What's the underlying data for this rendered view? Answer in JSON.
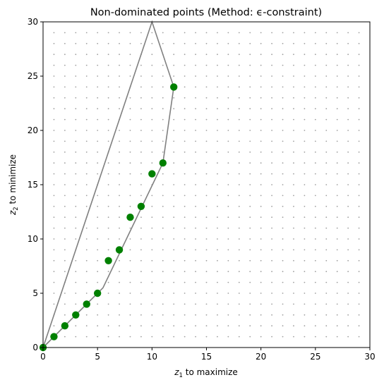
{
  "chart_data": {
    "type": "scatter",
    "title": "Non-dominated points (Method: ϵ-constraint)",
    "xlabel": {
      "var": "z",
      "sub": "1",
      "rest": " to maximize"
    },
    "ylabel": {
      "var": "z",
      "sub": "2",
      "rest": " to minimize"
    },
    "xlim": [
      0,
      30
    ],
    "ylim": [
      0,
      30
    ],
    "xticks": [
      0,
      5,
      10,
      15,
      20,
      25,
      30
    ],
    "yticks": [
      0,
      5,
      10,
      15,
      20,
      25,
      30
    ],
    "grid_points": true,
    "grid_point_range": [
      1,
      29
    ],
    "series": [
      {
        "kind": "points",
        "color": "#008000",
        "points": [
          [
            0,
            0
          ],
          [
            1,
            1
          ],
          [
            2,
            2
          ],
          [
            3,
            3
          ],
          [
            4,
            4
          ],
          [
            5,
            5
          ],
          [
            6,
            8
          ],
          [
            7,
            9
          ],
          [
            8,
            12
          ],
          [
            9,
            13
          ],
          [
            10,
            16
          ],
          [
            11,
            17
          ],
          [
            12,
            24
          ]
        ]
      },
      {
        "kind": "polygon",
        "color": "#808080",
        "vertices": [
          [
            0,
            0
          ],
          [
            10,
            30
          ],
          [
            12,
            24
          ],
          [
            11,
            17
          ],
          [
            5.5,
            5.5
          ],
          [
            0,
            0
          ]
        ]
      }
    ]
  }
}
